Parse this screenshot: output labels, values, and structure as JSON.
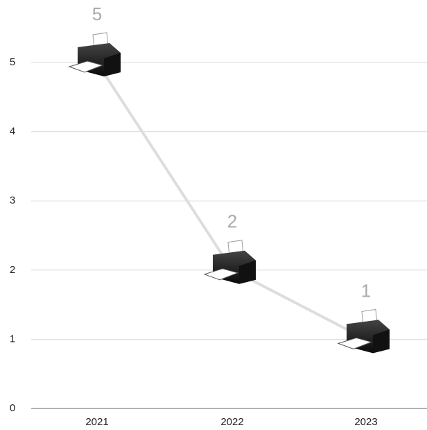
{
  "chart_data": {
    "type": "line",
    "categories": [
      "2021",
      "2022",
      "2023"
    ],
    "values": [
      5,
      2,
      1
    ],
    "color": "#dddddd",
    "label_color": "#aaaaaa",
    "ylim": [
      0,
      5
    ],
    "yticks": [
      0,
      1,
      2,
      3,
      4,
      5
    ],
    "grid": true
  }
}
